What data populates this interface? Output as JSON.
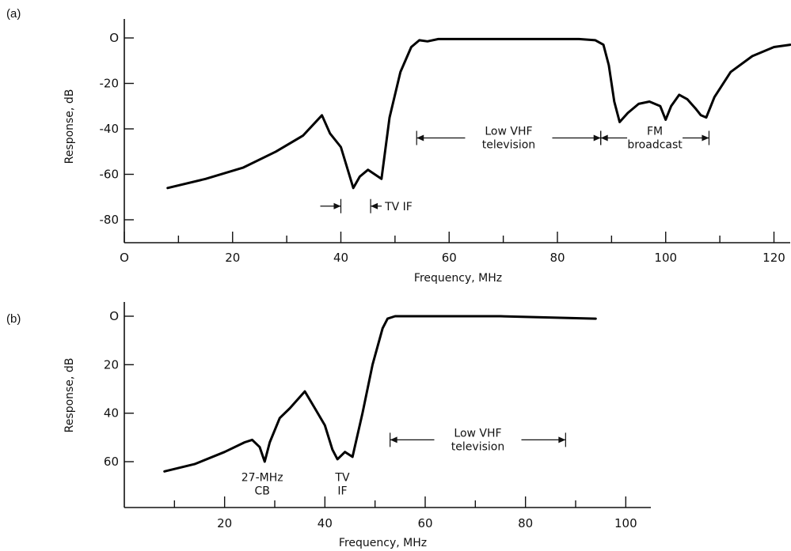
{
  "chart_data": [
    {
      "type": "line",
      "panel_label": "(a)",
      "xlabel": "Frequency, MHz",
      "ylabel": "Response, dB",
      "xlim": [
        0,
        123
      ],
      "ylim": [
        -90,
        8
      ],
      "xticks": [
        0,
        20,
        40,
        60,
        80,
        100,
        120
      ],
      "xtick_labels": [
        "O",
        "20",
        "40",
        "60",
        "80",
        "100",
        "120"
      ],
      "x_minor_ticks": [
        10,
        30,
        50,
        70,
        90,
        110
      ],
      "yticks": [
        0,
        -20,
        -40,
        -60,
        -80
      ],
      "ytick_labels": [
        "O",
        "-20",
        "-40",
        "-60",
        "-80"
      ],
      "grid": false,
      "series": [
        {
          "x": [
            8,
            15,
            22,
            28,
            33,
            36.5,
            38,
            40,
            42.3,
            43.5,
            45,
            47.5,
            49,
            51,
            53,
            54.5,
            56,
            58,
            70,
            84,
            87,
            88.5,
            89.5,
            90.5,
            91.5,
            93,
            95,
            97,
            99,
            100,
            101,
            102.5,
            104,
            105.5,
            106.5,
            107.5,
            109,
            112,
            116,
            120,
            123
          ],
          "y": [
            -66,
            -62,
            -57,
            -50,
            -43,
            -34,
            -42,
            -48,
            -66,
            -61,
            -58,
            -62,
            -35,
            -15,
            -4,
            -1,
            -1.5,
            -0.5,
            -0.5,
            -0.5,
            -1,
            -3,
            -12,
            -28,
            -37,
            -33,
            -29,
            -28,
            -30,
            -36,
            -30,
            -25,
            -27,
            -31,
            -34,
            -35,
            -26,
            -15,
            -8,
            -4,
            -3
          ]
        }
      ],
      "annotations": [
        {
          "text": "TV IF",
          "x_range": [
            40,
            45.5
          ],
          "y": -74
        },
        {
          "text": "Low VHF television",
          "lines": [
            "Low VHF",
            "television"
          ],
          "x_range": [
            54,
            88
          ],
          "y": -44
        },
        {
          "text": "FM broadcast",
          "lines": [
            "FM",
            "broadcast"
          ],
          "x_range": [
            88,
            108
          ],
          "y": -44
        }
      ]
    },
    {
      "type": "line",
      "panel_label": "(b)",
      "xlabel": "Frequency, MHz",
      "ylabel": "Response, dB",
      "xlim": [
        0,
        105
      ],
      "ylim": [
        77,
        -5
      ],
      "xticks": [
        20,
        40,
        60,
        80,
        100
      ],
      "xtick_labels": [
        "20",
        "40",
        "60",
        "80",
        "100"
      ],
      "x_minor_ticks": [
        10,
        30,
        50,
        70,
        90
      ],
      "yticks": [
        0,
        20,
        40,
        60
      ],
      "ytick_labels": [
        "O",
        "20",
        "40",
        "60"
      ],
      "grid": false,
      "series": [
        {
          "x": [
            8,
            14,
            20,
            24,
            25.5,
            27,
            28,
            29,
            31,
            33,
            36,
            38,
            40,
            41.5,
            42.5,
            44,
            45.5,
            47.5,
            49.5,
            51.5,
            52.5,
            54,
            60,
            75,
            94
          ],
          "y": [
            64,
            61,
            56,
            52,
            51,
            54,
            60,
            52,
            42,
            38,
            31,
            38,
            45,
            55,
            59,
            56,
            58,
            40,
            20,
            5,
            1,
            0,
            0,
            0,
            1
          ]
        }
      ],
      "annotations": [
        {
          "text": "27-MHz CB",
          "lines": [
            "27-MHz",
            "CB"
          ],
          "x": 27.5,
          "y": 68
        },
        {
          "text": "TV IF",
          "lines": [
            "TV",
            "IF"
          ],
          "x": 43.5,
          "y": 68
        },
        {
          "text": "Low VHF television",
          "lines": [
            "Low VHF",
            "television"
          ],
          "x_range": [
            53,
            88
          ],
          "y": 51
        }
      ]
    }
  ]
}
